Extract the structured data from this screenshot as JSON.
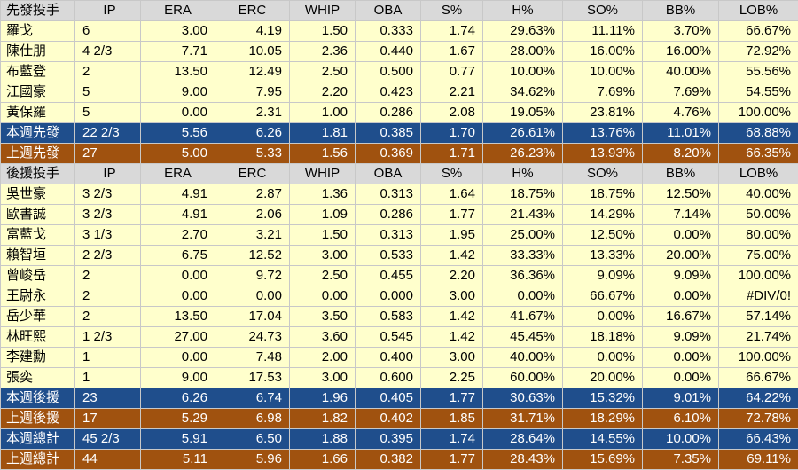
{
  "columns": [
    "IP",
    "ERA",
    "ERC",
    "WHIP",
    "OBA",
    "S%",
    "H%",
    "SO%",
    "BB%",
    "LOB%"
  ],
  "sections": [
    {
      "header": "先發投手",
      "rows": [
        [
          "羅戈",
          "6",
          "3.00",
          "4.19",
          "1.50",
          "0.333",
          "1.74",
          "29.63%",
          "11.11%",
          "3.70%",
          "66.67%"
        ],
        [
          "陳仕朋",
          "4 2/3",
          "7.71",
          "10.05",
          "2.36",
          "0.440",
          "1.67",
          "28.00%",
          "16.00%",
          "16.00%",
          "72.92%"
        ],
        [
          "布藍登",
          "2",
          "13.50",
          "12.49",
          "2.50",
          "0.500",
          "0.77",
          "10.00%",
          "10.00%",
          "40.00%",
          "55.56%"
        ],
        [
          "江國豪",
          "5",
          "9.00",
          "7.95",
          "2.20",
          "0.423",
          "2.21",
          "34.62%",
          "7.69%",
          "7.69%",
          "54.55%"
        ],
        [
          "黃保羅",
          "5",
          "0.00",
          "2.31",
          "1.00",
          "0.286",
          "2.08",
          "19.05%",
          "23.81%",
          "4.76%",
          "100.00%"
        ]
      ],
      "totals": [
        {
          "style": "blue",
          "cells": [
            "本週先發",
            "22 2/3",
            "5.56",
            "6.26",
            "1.81",
            "0.385",
            "1.70",
            "26.61%",
            "13.76%",
            "11.01%",
            "68.88%"
          ]
        },
        {
          "style": "brown",
          "cells": [
            "上週先發",
            "27",
            "5.00",
            "5.33",
            "1.56",
            "0.369",
            "1.71",
            "26.23%",
            "13.93%",
            "8.20%",
            "66.35%"
          ]
        }
      ]
    },
    {
      "header": "後援投手",
      "rows": [
        [
          "吳世豪",
          "3 2/3",
          "4.91",
          "2.87",
          "1.36",
          "0.313",
          "1.64",
          "18.75%",
          "18.75%",
          "12.50%",
          "40.00%"
        ],
        [
          "歐書誠",
          "3 2/3",
          "4.91",
          "2.06",
          "1.09",
          "0.286",
          "1.77",
          "21.43%",
          "14.29%",
          "7.14%",
          "50.00%"
        ],
        [
          "富藍戈",
          "3 1/3",
          "2.70",
          "3.21",
          "1.50",
          "0.313",
          "1.95",
          "25.00%",
          "12.50%",
          "0.00%",
          "80.00%"
        ],
        [
          "賴智垣",
          "2 2/3",
          "6.75",
          "12.52",
          "3.00",
          "0.533",
          "1.42",
          "33.33%",
          "13.33%",
          "20.00%",
          "75.00%"
        ],
        [
          "曾峻岳",
          "2",
          "0.00",
          "9.72",
          "2.50",
          "0.455",
          "2.20",
          "36.36%",
          "9.09%",
          "9.09%",
          "100.00%"
        ],
        [
          "王尉永",
          "2",
          "0.00",
          "0.00",
          "0.00",
          "0.000",
          "3.00",
          "0.00%",
          "66.67%",
          "0.00%",
          "#DIV/0!"
        ],
        [
          "岳少華",
          "2",
          "13.50",
          "17.04",
          "3.50",
          "0.583",
          "1.42",
          "41.67%",
          "0.00%",
          "16.67%",
          "57.14%"
        ],
        [
          "林旺熙",
          "1 2/3",
          "27.00",
          "24.73",
          "3.60",
          "0.545",
          "1.42",
          "45.45%",
          "18.18%",
          "9.09%",
          "21.74%"
        ],
        [
          "李建勳",
          "1",
          "0.00",
          "7.48",
          "2.00",
          "0.400",
          "3.00",
          "40.00%",
          "0.00%",
          "0.00%",
          "100.00%"
        ],
        [
          "張奕",
          "1",
          "9.00",
          "17.53",
          "3.00",
          "0.600",
          "2.25",
          "60.00%",
          "20.00%",
          "0.00%",
          "66.67%"
        ]
      ],
      "totals": [
        {
          "style": "blue",
          "cells": [
            "本週後援",
            "23",
            "6.26",
            "6.74",
            "1.96",
            "0.405",
            "1.77",
            "30.63%",
            "15.32%",
            "9.01%",
            "64.22%"
          ]
        },
        {
          "style": "brown",
          "cells": [
            "上週後援",
            "17",
            "5.29",
            "6.98",
            "1.82",
            "0.402",
            "1.85",
            "31.71%",
            "18.29%",
            "6.10%",
            "72.78%"
          ]
        },
        {
          "style": "blue",
          "cells": [
            "本週總計",
            "45 2/3",
            "5.91",
            "6.50",
            "1.88",
            "0.395",
            "1.74",
            "28.64%",
            "14.55%",
            "10.00%",
            "66.43%"
          ]
        },
        {
          "style": "brown",
          "cells": [
            "上週總計",
            "44",
            "5.11",
            "5.96",
            "1.66",
            "0.382",
            "1.77",
            "28.43%",
            "15.69%",
            "7.35%",
            "69.11%"
          ]
        }
      ]
    }
  ],
  "colors": {
    "header_bg": "#d9d9d9",
    "row_bg": "#ffffcc",
    "this_week_bg": "#1f4e8c",
    "last_week_bg": "#a0520f",
    "total_text": "#ffffff"
  }
}
